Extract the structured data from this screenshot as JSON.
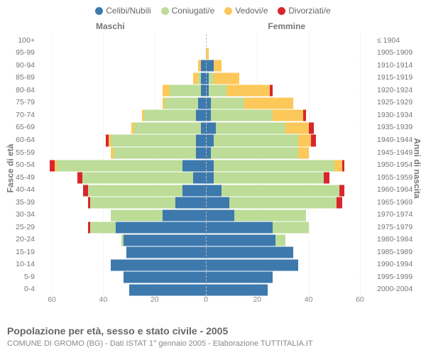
{
  "chart": {
    "type": "population-pyramid",
    "background_color": "#ffffff",
    "title": "Popolazione per età, sesso e stato civile - 2005",
    "subtitle": "COMUNE DI GROMO (BG) - Dati ISTAT 1° gennaio 2005 - Elaborazione TUTTITALIA.IT",
    "left_label": "Maschi",
    "right_label": "Femmine",
    "y_left_title": "Fasce di età",
    "y_right_title": "Anni di nascita",
    "x_max": 65,
    "x_ticks": [
      60,
      40,
      20,
      0,
      20,
      40,
      60
    ],
    "colors": {
      "celibi": "#3d79ad",
      "coniugati": "#bcdc98",
      "vedovi": "#fcc859",
      "divorziati": "#d9262d"
    },
    "legend": [
      {
        "key": "celibi",
        "label": "Celibi/Nubili"
      },
      {
        "key": "coniugati",
        "label": "Coniugati/e"
      },
      {
        "key": "vedovi",
        "label": "Vedovi/e"
      },
      {
        "key": "divorziati",
        "label": "Divorziati/e"
      }
    ],
    "rows": [
      {
        "age": "100+",
        "birth": "≤ 1904",
        "m": {
          "c": 0,
          "co": 0,
          "v": 0,
          "d": 0
        },
        "f": {
          "c": 0,
          "co": 0,
          "v": 0,
          "d": 0
        }
      },
      {
        "age": "95-99",
        "birth": "1905-1909",
        "m": {
          "c": 0,
          "co": 0,
          "v": 0,
          "d": 0
        },
        "f": {
          "c": 0,
          "co": 0,
          "v": 1,
          "d": 0
        }
      },
      {
        "age": "90-94",
        "birth": "1910-1914",
        "m": {
          "c": 2,
          "co": 0,
          "v": 1,
          "d": 0
        },
        "f": {
          "c": 3,
          "co": 0,
          "v": 3,
          "d": 0
        }
      },
      {
        "age": "85-89",
        "birth": "1915-1919",
        "m": {
          "c": 2,
          "co": 1,
          "v": 2,
          "d": 0
        },
        "f": {
          "c": 1,
          "co": 2,
          "v": 10,
          "d": 0
        }
      },
      {
        "age": "80-84",
        "birth": "1920-1924",
        "m": {
          "c": 2,
          "co": 12,
          "v": 3,
          "d": 0
        },
        "f": {
          "c": 1,
          "co": 7,
          "v": 17,
          "d": 1
        }
      },
      {
        "age": "75-79",
        "birth": "1925-1929",
        "m": {
          "c": 3,
          "co": 13,
          "v": 1,
          "d": 0
        },
        "f": {
          "c": 2,
          "co": 13,
          "v": 19,
          "d": 0
        }
      },
      {
        "age": "70-74",
        "birth": "1930-1934",
        "m": {
          "c": 4,
          "co": 20,
          "v": 1,
          "d": 0
        },
        "f": {
          "c": 2,
          "co": 24,
          "v": 12,
          "d": 1
        }
      },
      {
        "age": "65-69",
        "birth": "1935-1939",
        "m": {
          "c": 2,
          "co": 26,
          "v": 1,
          "d": 0
        },
        "f": {
          "c": 4,
          "co": 27,
          "v": 9,
          "d": 2
        }
      },
      {
        "age": "60-64",
        "birth": "1940-1944",
        "m": {
          "c": 4,
          "co": 33,
          "v": 1,
          "d": 1
        },
        "f": {
          "c": 3,
          "co": 33,
          "v": 5,
          "d": 2
        }
      },
      {
        "age": "55-59",
        "birth": "1945-1949",
        "m": {
          "c": 4,
          "co": 32,
          "v": 1,
          "d": 0
        },
        "f": {
          "c": 2,
          "co": 34,
          "v": 4,
          "d": 0
        }
      },
      {
        "age": "50-54",
        "birth": "1950-1954",
        "m": {
          "c": 9,
          "co": 49,
          "v": 1,
          "d": 2
        },
        "f": {
          "c": 3,
          "co": 47,
          "v": 3,
          "d": 1
        }
      },
      {
        "age": "45-49",
        "birth": "1955-1959",
        "m": {
          "c": 5,
          "co": 43,
          "v": 0,
          "d": 2
        },
        "f": {
          "c": 3,
          "co": 43,
          "v": 0,
          "d": 2
        }
      },
      {
        "age": "40-44",
        "birth": "1960-1964",
        "m": {
          "c": 9,
          "co": 37,
          "v": 0,
          "d": 2
        },
        "f": {
          "c": 6,
          "co": 46,
          "v": 0,
          "d": 2
        }
      },
      {
        "age": "35-39",
        "birth": "1965-1969",
        "m": {
          "c": 12,
          "co": 33,
          "v": 0,
          "d": 1
        },
        "f": {
          "c": 9,
          "co": 42,
          "v": 0,
          "d": 2
        }
      },
      {
        "age": "30-34",
        "birth": "1970-1974",
        "m": {
          "c": 17,
          "co": 20,
          "v": 0,
          "d": 0
        },
        "f": {
          "c": 11,
          "co": 28,
          "v": 0,
          "d": 0
        }
      },
      {
        "age": "25-29",
        "birth": "1975-1979",
        "m": {
          "c": 35,
          "co": 10,
          "v": 0,
          "d": 1
        },
        "f": {
          "c": 26,
          "co": 14,
          "v": 0,
          "d": 0
        }
      },
      {
        "age": "20-24",
        "birth": "1980-1984",
        "m": {
          "c": 32,
          "co": 1,
          "v": 0,
          "d": 0
        },
        "f": {
          "c": 27,
          "co": 4,
          "v": 0,
          "d": 0
        }
      },
      {
        "age": "15-19",
        "birth": "1985-1989",
        "m": {
          "c": 31,
          "co": 0,
          "v": 0,
          "d": 0
        },
        "f": {
          "c": 34,
          "co": 0,
          "v": 0,
          "d": 0
        }
      },
      {
        "age": "10-14",
        "birth": "1990-1994",
        "m": {
          "c": 37,
          "co": 0,
          "v": 0,
          "d": 0
        },
        "f": {
          "c": 36,
          "co": 0,
          "v": 0,
          "d": 0
        }
      },
      {
        "age": "5-9",
        "birth": "1995-1999",
        "m": {
          "c": 32,
          "co": 0,
          "v": 0,
          "d": 0
        },
        "f": {
          "c": 26,
          "co": 0,
          "v": 0,
          "d": 0
        }
      },
      {
        "age": "0-4",
        "birth": "2000-2004",
        "m": {
          "c": 30,
          "co": 0,
          "v": 0,
          "d": 0
        },
        "f": {
          "c": 24,
          "co": 0,
          "v": 0,
          "d": 0
        }
      }
    ]
  }
}
